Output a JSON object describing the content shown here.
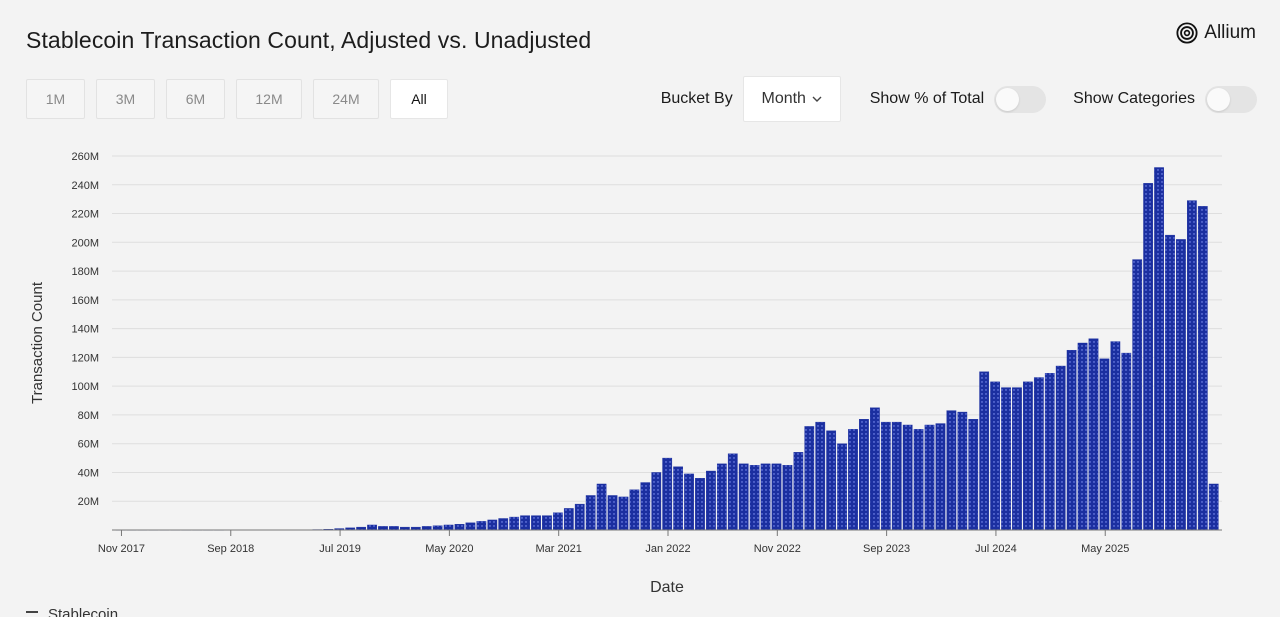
{
  "header": {
    "title": "Stablecoin Transaction Count, Adjusted vs. Unadjusted",
    "brand": "Allium"
  },
  "range_buttons": [
    {
      "label": "1M",
      "active": false
    },
    {
      "label": "3M",
      "active": false
    },
    {
      "label": "6M",
      "active": false
    },
    {
      "label": "12M",
      "active": false
    },
    {
      "label": "24M",
      "active": false
    },
    {
      "label": "All",
      "active": true
    }
  ],
  "controls": {
    "bucket_label": "Bucket By",
    "bucket_value": "Month",
    "pct_label": "Show % of Total",
    "pct_on": false,
    "cat_label": "Show Categories",
    "cat_on": false
  },
  "legend": {
    "label": "Stablecoin"
  },
  "colors": {
    "bar": "#1b2fa0",
    "grid": "#dedede",
    "axis": "#777777"
  },
  "chart_data": {
    "type": "bar",
    "xlabel": "Date",
    "ylabel": "Transaction Count",
    "ylim": [
      0,
      260000000
    ],
    "y_ticks": [
      20000000,
      40000000,
      60000000,
      80000000,
      100000000,
      120000000,
      140000000,
      160000000,
      180000000,
      200000000,
      220000000,
      240000000,
      260000000
    ],
    "y_tick_labels": [
      "20M",
      "40M",
      "60M",
      "80M",
      "100M",
      "120M",
      "140M",
      "160M",
      "180M",
      "200M",
      "220M",
      "240M",
      "260M"
    ],
    "x_tick_labels": [
      "Nov 2017",
      "Sep 2018",
      "Jul 2019",
      "May 2020",
      "Mar 2021",
      "Jan 2022",
      "Nov 2022",
      "Sep 2023",
      "Jul 2024",
      "May 2025"
    ],
    "start_month": "2017-11",
    "grid": true,
    "series": [
      {
        "values": [
          0.05,
          0.05,
          0.05,
          0.05,
          0.05,
          0.05,
          0.05,
          0.05,
          0.05,
          0.05,
          0.1,
          0.1,
          0.1,
          0.1,
          0.1,
          0.1,
          0.1,
          0.2,
          0.3,
          0.5,
          1,
          1.5,
          2,
          3.5,
          2.5,
          2.5,
          2,
          2,
          2.5,
          3,
          3.5,
          4,
          5,
          6,
          7,
          8,
          9,
          10,
          10,
          10,
          12,
          15,
          18,
          24,
          32,
          24,
          23,
          28,
          33,
          40,
          50,
          44,
          39,
          36,
          41,
          46,
          53,
          46,
          45,
          46,
          46,
          45,
          54,
          72,
          75,
          69,
          60,
          70,
          77,
          85,
          75,
          75,
          73,
          70,
          73,
          74,
          83,
          82,
          77,
          110,
          103,
          99,
          99,
          103,
          106,
          109,
          114,
          125,
          130,
          133,
          119,
          131,
          123,
          188,
          241,
          252,
          205,
          202,
          229,
          225,
          32
        ]
      }
    ],
    "value_unit": "M"
  }
}
